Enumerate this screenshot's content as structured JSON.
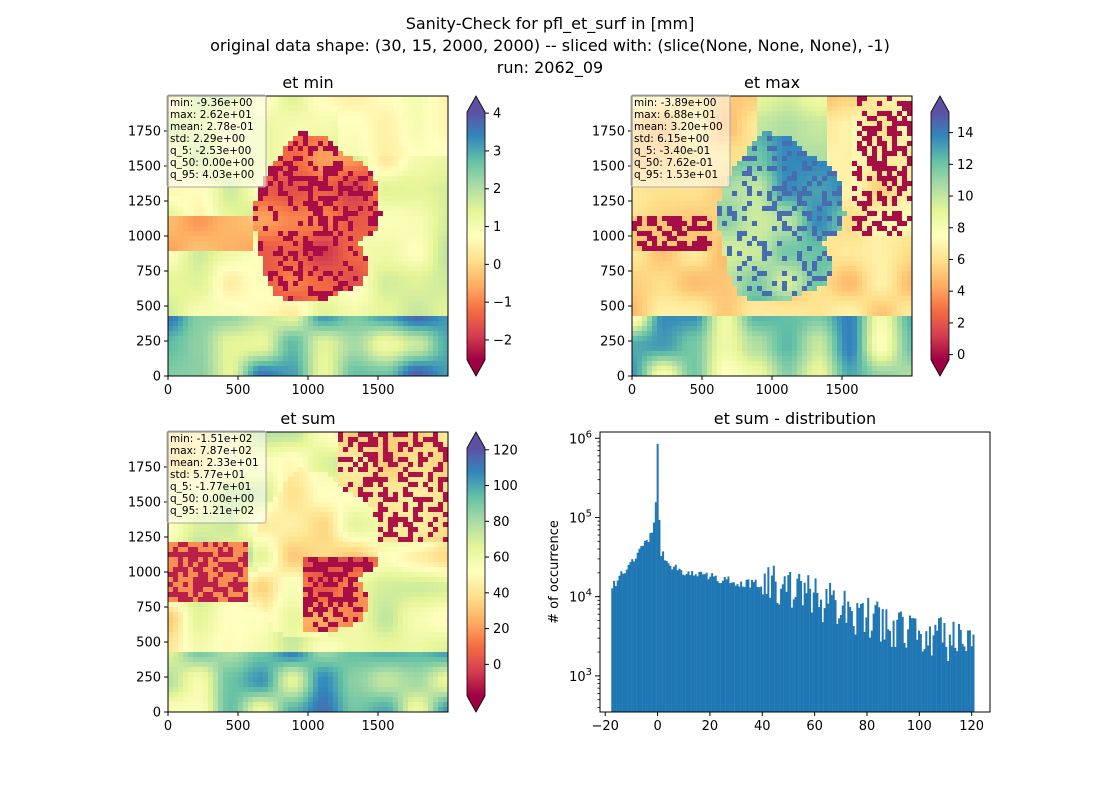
{
  "figure": {
    "title_lines": [
      "Sanity-Check for pfl_et_surf in [mm]",
      "original data shape: (30, 15, 2000, 2000) -- sliced with: (slice(None, None, None), -1)",
      "run: 2062_09"
    ]
  },
  "map_panels": [
    {
      "id": "et-min",
      "title": "et min",
      "stats": [
        "min: -9.36e+00",
        "max: 2.62e+01",
        "mean: 2.78e-01",
        "std: 2.29e+00",
        "q_5: -2.53e+00",
        "q_50: 0.00e+00",
        "q_95: 4.03e+00"
      ],
      "colorbar_ticks": [
        {
          "value": 4,
          "label": "4"
        },
        {
          "value": 3,
          "label": "3"
        },
        {
          "value": 2,
          "label": "2"
        },
        {
          "value": 1,
          "label": "1"
        },
        {
          "value": 0,
          "label": "0"
        },
        {
          "value": -1,
          "label": "−1"
        },
        {
          "value": -2,
          "label": "−2"
        }
      ],
      "colorbar_range": [
        -2.53,
        4.03
      ],
      "map_style": "min"
    },
    {
      "id": "et-max",
      "title": "et max",
      "stats": [
        "min: -3.89e+00",
        "max: 6.88e+01",
        "mean: 3.20e+00",
        "std: 6.15e+00",
        "q_5: -3.40e-01",
        "q_50: 7.62e-01",
        "q_95: 1.53e+01"
      ],
      "colorbar_ticks": [
        {
          "value": 14,
          "label": "14"
        },
        {
          "value": 12,
          "label": "12"
        },
        {
          "value": 10,
          "label": "10"
        },
        {
          "value": 8,
          "label": "8"
        },
        {
          "value": 6,
          "label": "6"
        },
        {
          "value": 4,
          "label": "4"
        },
        {
          "value": 2,
          "label": "2"
        },
        {
          "value": 0,
          "label": "0"
        }
      ],
      "colorbar_range": [
        -0.34,
        15.3
      ],
      "map_style": "max"
    },
    {
      "id": "et-sum",
      "title": "et sum",
      "stats": [
        "min: -1.51e+02",
        "max: 7.87e+02",
        "mean: 2.33e+01",
        "std: 5.77e+01",
        "q_5: -1.77e+01",
        "q_50: 0.00e+00",
        "q_95: 1.21e+02"
      ],
      "colorbar_ticks": [
        {
          "value": 120,
          "label": "120"
        },
        {
          "value": 100,
          "label": "100"
        },
        {
          "value": 80,
          "label": "80"
        },
        {
          "value": 60,
          "label": "60"
        },
        {
          "value": 40,
          "label": "40"
        },
        {
          "value": 20,
          "label": "20"
        },
        {
          "value": 0,
          "label": "0"
        }
      ],
      "colorbar_range": [
        -17.7,
        121
      ],
      "map_style": "sum"
    }
  ],
  "map_axes": {
    "x_ticks": [
      "0",
      "500",
      "1000",
      "1500"
    ],
    "y_ticks": [
      "0",
      "250",
      "500",
      "750",
      "1000",
      "1250",
      "1500",
      "1750"
    ],
    "x_tick_values": [
      0,
      500,
      1000,
      1500
    ],
    "y_tick_values": [
      0,
      250,
      500,
      750,
      1000,
      1250,
      1500,
      1750
    ],
    "range": [
      0,
      2000
    ],
    "colormap": "Spectral"
  },
  "chart_data": {
    "type": "bar",
    "title": "et sum - distribution",
    "xlabel": "",
    "ylabel": "# of occurrence",
    "ylog": true,
    "xlim": [
      -22,
      127
    ],
    "ylim": [
      350,
      1200000
    ],
    "x_ticks": [
      "−20",
      "0",
      "20",
      "40",
      "60",
      "80",
      "100",
      "120"
    ],
    "x_tick_values": [
      -20,
      0,
      20,
      40,
      60,
      80,
      100,
      120
    ],
    "y_ticks": [
      "10^3",
      "10^4",
      "10^5",
      "10^6"
    ],
    "y_tick_values": [
      1000,
      10000,
      100000,
      1000000
    ],
    "bin_range": [
      -17.7,
      121
    ],
    "bin_count": 200,
    "color": "#1f77b4",
    "shape": [
      {
        "x": -17.7,
        "y": 12000
      },
      {
        "x": -15,
        "y": 18000
      },
      {
        "x": -10,
        "y": 28000
      },
      {
        "x": -5,
        "y": 45000
      },
      {
        "x": -1,
        "y": 80000
      },
      {
        "x": 0,
        "y": 850000
      },
      {
        "x": 1,
        "y": 36000
      },
      {
        "x": 3,
        "y": 30000
      },
      {
        "x": 5,
        "y": 25000
      },
      {
        "x": 10,
        "y": 21000
      },
      {
        "x": 20,
        "y": 18000
      },
      {
        "x": 30,
        "y": 15500
      },
      {
        "x": 40,
        "y": 14000
      },
      {
        "x": 50,
        "y": 12000
      },
      {
        "x": 60,
        "y": 9500
      },
      {
        "x": 70,
        "y": 7000
      },
      {
        "x": 80,
        "y": 5500
      },
      {
        "x": 90,
        "y": 4300
      },
      {
        "x": 100,
        "y": 3500
      },
      {
        "x": 110,
        "y": 2800
      },
      {
        "x": 121,
        "y": 3500
      }
    ]
  }
}
